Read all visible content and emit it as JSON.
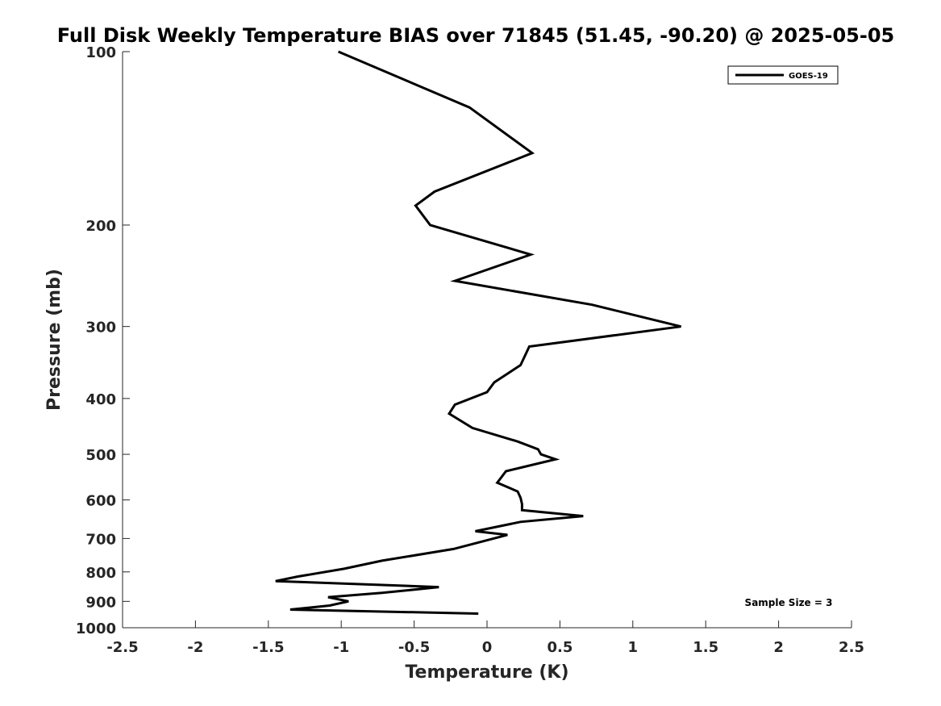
{
  "chart_data": {
    "type": "line",
    "title": "Full Disk Weekly Temperature BIAS over 71845 (51.45, -90.20) @ 2025-05-05",
    "xlabel": "Temperature (K)",
    "ylabel": "Pressure (mb)",
    "xlim": [
      -2.5,
      2.5
    ],
    "ylim": [
      100,
      1000
    ],
    "y_scale": "log",
    "y_reversed": true,
    "grid": false,
    "x_ticks": [
      -2.5,
      -2,
      -1.5,
      -1,
      -0.5,
      0,
      0.5,
      1,
      1.5,
      2,
      2.5
    ],
    "x_tick_labels": [
      "-2.5",
      "-2",
      "-1.5",
      "-1",
      "-0.5",
      "0",
      "0.5",
      "1",
      "1.5",
      "2",
      "2.5"
    ],
    "y_ticks": [
      100,
      200,
      300,
      400,
      500,
      600,
      700,
      800,
      900,
      1000
    ],
    "y_tick_labels": [
      "100",
      "200",
      "300",
      "400",
      "500",
      "600",
      "700",
      "800",
      "900",
      "1000"
    ],
    "legend_position": "top-right",
    "annotation": "Sample Size = 3",
    "series": [
      {
        "name": "GOES-19",
        "color": "#000000",
        "points": [
          {
            "x": -1.02,
            "y": 100
          },
          {
            "x": -0.12,
            "y": 125
          },
          {
            "x": 0.31,
            "y": 150
          },
          {
            "x": -0.36,
            "y": 175
          },
          {
            "x": -0.49,
            "y": 185
          },
          {
            "x": -0.39,
            "y": 200
          },
          {
            "x": 0.3,
            "y": 225
          },
          {
            "x": -0.22,
            "y": 250
          },
          {
            "x": 0.72,
            "y": 275
          },
          {
            "x": 1.33,
            "y": 300
          },
          {
            "x": 0.29,
            "y": 325
          },
          {
            "x": 0.23,
            "y": 350
          },
          {
            "x": 0.05,
            "y": 375
          },
          {
            "x": 0.0,
            "y": 390
          },
          {
            "x": -0.22,
            "y": 410
          },
          {
            "x": -0.26,
            "y": 425
          },
          {
            "x": -0.1,
            "y": 450
          },
          {
            "x": 0.21,
            "y": 475
          },
          {
            "x": 0.35,
            "y": 490
          },
          {
            "x": 0.37,
            "y": 500
          },
          {
            "x": 0.47,
            "y": 510
          },
          {
            "x": 0.13,
            "y": 535
          },
          {
            "x": 0.07,
            "y": 560
          },
          {
            "x": 0.21,
            "y": 580
          },
          {
            "x": 0.23,
            "y": 595
          },
          {
            "x": 0.24,
            "y": 610
          },
          {
            "x": 0.24,
            "y": 625
          },
          {
            "x": 0.66,
            "y": 640
          },
          {
            "x": 0.23,
            "y": 655
          },
          {
            "x": -0.08,
            "y": 680
          },
          {
            "x": 0.14,
            "y": 690
          },
          {
            "x": 0.0,
            "y": 705
          },
          {
            "x": -0.23,
            "y": 730
          },
          {
            "x": -0.72,
            "y": 765
          },
          {
            "x": -0.98,
            "y": 790
          },
          {
            "x": -1.3,
            "y": 815
          },
          {
            "x": -1.45,
            "y": 830
          },
          {
            "x": -0.33,
            "y": 850
          },
          {
            "x": -0.72,
            "y": 870
          },
          {
            "x": -1.09,
            "y": 885
          },
          {
            "x": -0.95,
            "y": 900
          },
          {
            "x": -1.08,
            "y": 915
          },
          {
            "x": -1.35,
            "y": 930
          },
          {
            "x": -0.06,
            "y": 945
          }
        ]
      }
    ]
  }
}
